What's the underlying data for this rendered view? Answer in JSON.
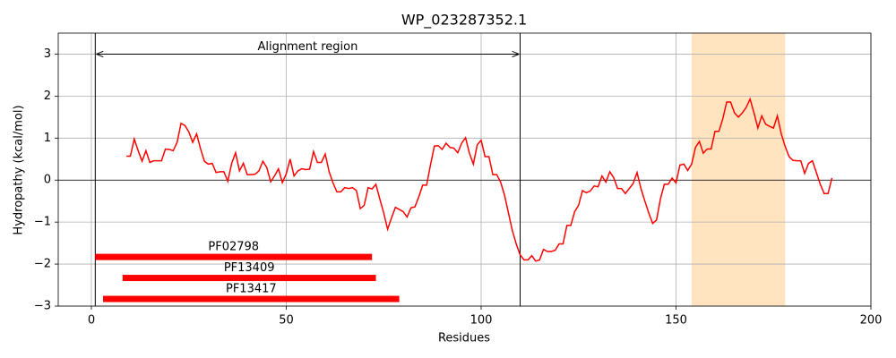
{
  "chart_data": {
    "type": "line",
    "title": "WP_023287352.1",
    "x_label": "Residues",
    "y_label": "Hydropathy (kcal/mol)",
    "xlim": [
      -8.5,
      200
    ],
    "ylim": [
      -3,
      3.5
    ],
    "xticks": [
      0,
      50,
      100,
      150,
      200
    ],
    "yticks": [
      {
        "value": -3,
        "label": "−3"
      },
      {
        "value": -2,
        "label": "−2"
      },
      {
        "value": -1,
        "label": "−1"
      },
      0,
      1,
      2,
      3
    ],
    "grid": true,
    "color": "#ff0000",
    "x": [
      9,
      10,
      11,
      12,
      13,
      14,
      15,
      16,
      17,
      18,
      19,
      20,
      21,
      22,
      23,
      24,
      25,
      26,
      27,
      28,
      29,
      30,
      31,
      32,
      33,
      34,
      35,
      36,
      37,
      38,
      39,
      40,
      41,
      42,
      43,
      44,
      45,
      46,
      47,
      48,
      49,
      50,
      51,
      52,
      53,
      54,
      55,
      56,
      57,
      58,
      59,
      60,
      61,
      62,
      63,
      64,
      65,
      66,
      67,
      68,
      69,
      70,
      71,
      72,
      73,
      74,
      75,
      76,
      77,
      78,
      79,
      80,
      81,
      82,
      83,
      84,
      85,
      86,
      87,
      88,
      89,
      90,
      91,
      92,
      93,
      94,
      95,
      96,
      97,
      98,
      99,
      100,
      101,
      102,
      103,
      104,
      105,
      106,
      107,
      108,
      109,
      110,
      111,
      112,
      113,
      114,
      115,
      116,
      117,
      118,
      119,
      120,
      121,
      122,
      123,
      124,
      125,
      126,
      127,
      128,
      129,
      130,
      131,
      132,
      133,
      134,
      135,
      136,
      137,
      138,
      139,
      140,
      141,
      142,
      143,
      144,
      145,
      146,
      147,
      148,
      149,
      150,
      151,
      152,
      153,
      154,
      155,
      156,
      157,
      158,
      159,
      160,
      161,
      162,
      163,
      164,
      165,
      166,
      167,
      168,
      169,
      170,
      171,
      172,
      173,
      174,
      175,
      176,
      177,
      178,
      179,
      180,
      181,
      182,
      183,
      184,
      185,
      186,
      187,
      188,
      189,
      190
    ],
    "values": [
      0.57,
      0.57,
      0.98,
      0.7,
      0.45,
      0.7,
      0.42,
      0.46,
      0.46,
      0.46,
      0.74,
      0.73,
      0.7,
      0.9,
      1.35,
      1.3,
      1.15,
      0.9,
      1.1,
      0.75,
      0.45,
      0.38,
      0.4,
      0.18,
      0.2,
      0.2,
      -0.03,
      0.4,
      0.65,
      0.22,
      0.4,
      0.13,
      0.13,
      0.14,
      0.22,
      0.45,
      0.3,
      -0.04,
      0.1,
      0.27,
      -0.06,
      0.15,
      0.5,
      0.1,
      0.22,
      0.27,
      0.25,
      0.26,
      0.68,
      0.42,
      0.42,
      0.62,
      0.2,
      -0.07,
      -0.28,
      -0.28,
      -0.18,
      -0.2,
      -0.18,
      -0.25,
      -0.68,
      -0.6,
      -0.18,
      -0.21,
      -0.1,
      -0.45,
      -0.78,
      -1.17,
      -0.9,
      -0.65,
      -0.7,
      -0.75,
      -0.88,
      -0.66,
      -0.64,
      -0.4,
      -0.12,
      -0.12,
      0.36,
      0.81,
      0.82,
      0.73,
      0.88,
      0.78,
      0.76,
      0.65,
      0.88,
      1.01,
      0.64,
      0.38,
      0.84,
      0.95,
      0.56,
      0.56,
      0.13,
      0.13,
      -0.05,
      -0.36,
      -0.78,
      -1.2,
      -1.52,
      -1.78,
      -1.9,
      -1.9,
      -1.8,
      -1.93,
      -1.9,
      -1.65,
      -1.7,
      -1.7,
      -1.67,
      -1.52,
      -1.52,
      -1.08,
      -1.08,
      -0.75,
      -0.6,
      -0.25,
      -0.3,
      -0.26,
      -0.14,
      -0.16,
      0.1,
      -0.05,
      0.2,
      0.06,
      -0.2,
      -0.2,
      -0.32,
      -0.2,
      -0.08,
      0.18,
      -0.2,
      -0.5,
      -0.78,
      -1.03,
      -0.95,
      -0.45,
      -0.1,
      -0.1,
      0.05,
      -0.07,
      0.36,
      0.38,
      0.23,
      0.38,
      0.78,
      0.92,
      0.64,
      0.74,
      0.74,
      1.16,
      1.16,
      1.46,
      1.86,
      1.86,
      1.6,
      1.5,
      1.6,
      1.73,
      1.93,
      1.6,
      1.24,
      1.53,
      1.33,
      1.28,
      1.24,
      1.53,
      1.1,
      0.8,
      0.56,
      0.47,
      0.46,
      0.46,
      0.16,
      0.4,
      0.46,
      0.18,
      -0.1,
      -0.32,
      -0.32,
      0.05
    ],
    "hline": 0,
    "vlines": [
      1,
      110
    ],
    "shaded": {
      "range": [
        154,
        178
      ],
      "color": "#ffe4bf"
    },
    "annotation": {
      "text": "Alignment region",
      "x": [
        1,
        110
      ],
      "y": 3
    },
    "domains": [
      {
        "label": "PF02798",
        "start": 1,
        "end": 72,
        "y": -1.83
      },
      {
        "label": "PF13409",
        "start": 8,
        "end": 73,
        "y": -2.33
      },
      {
        "label": "PF13417",
        "start": 3,
        "end": 79,
        "y": -2.83
      }
    ],
    "domain_color": "#ff0000"
  }
}
